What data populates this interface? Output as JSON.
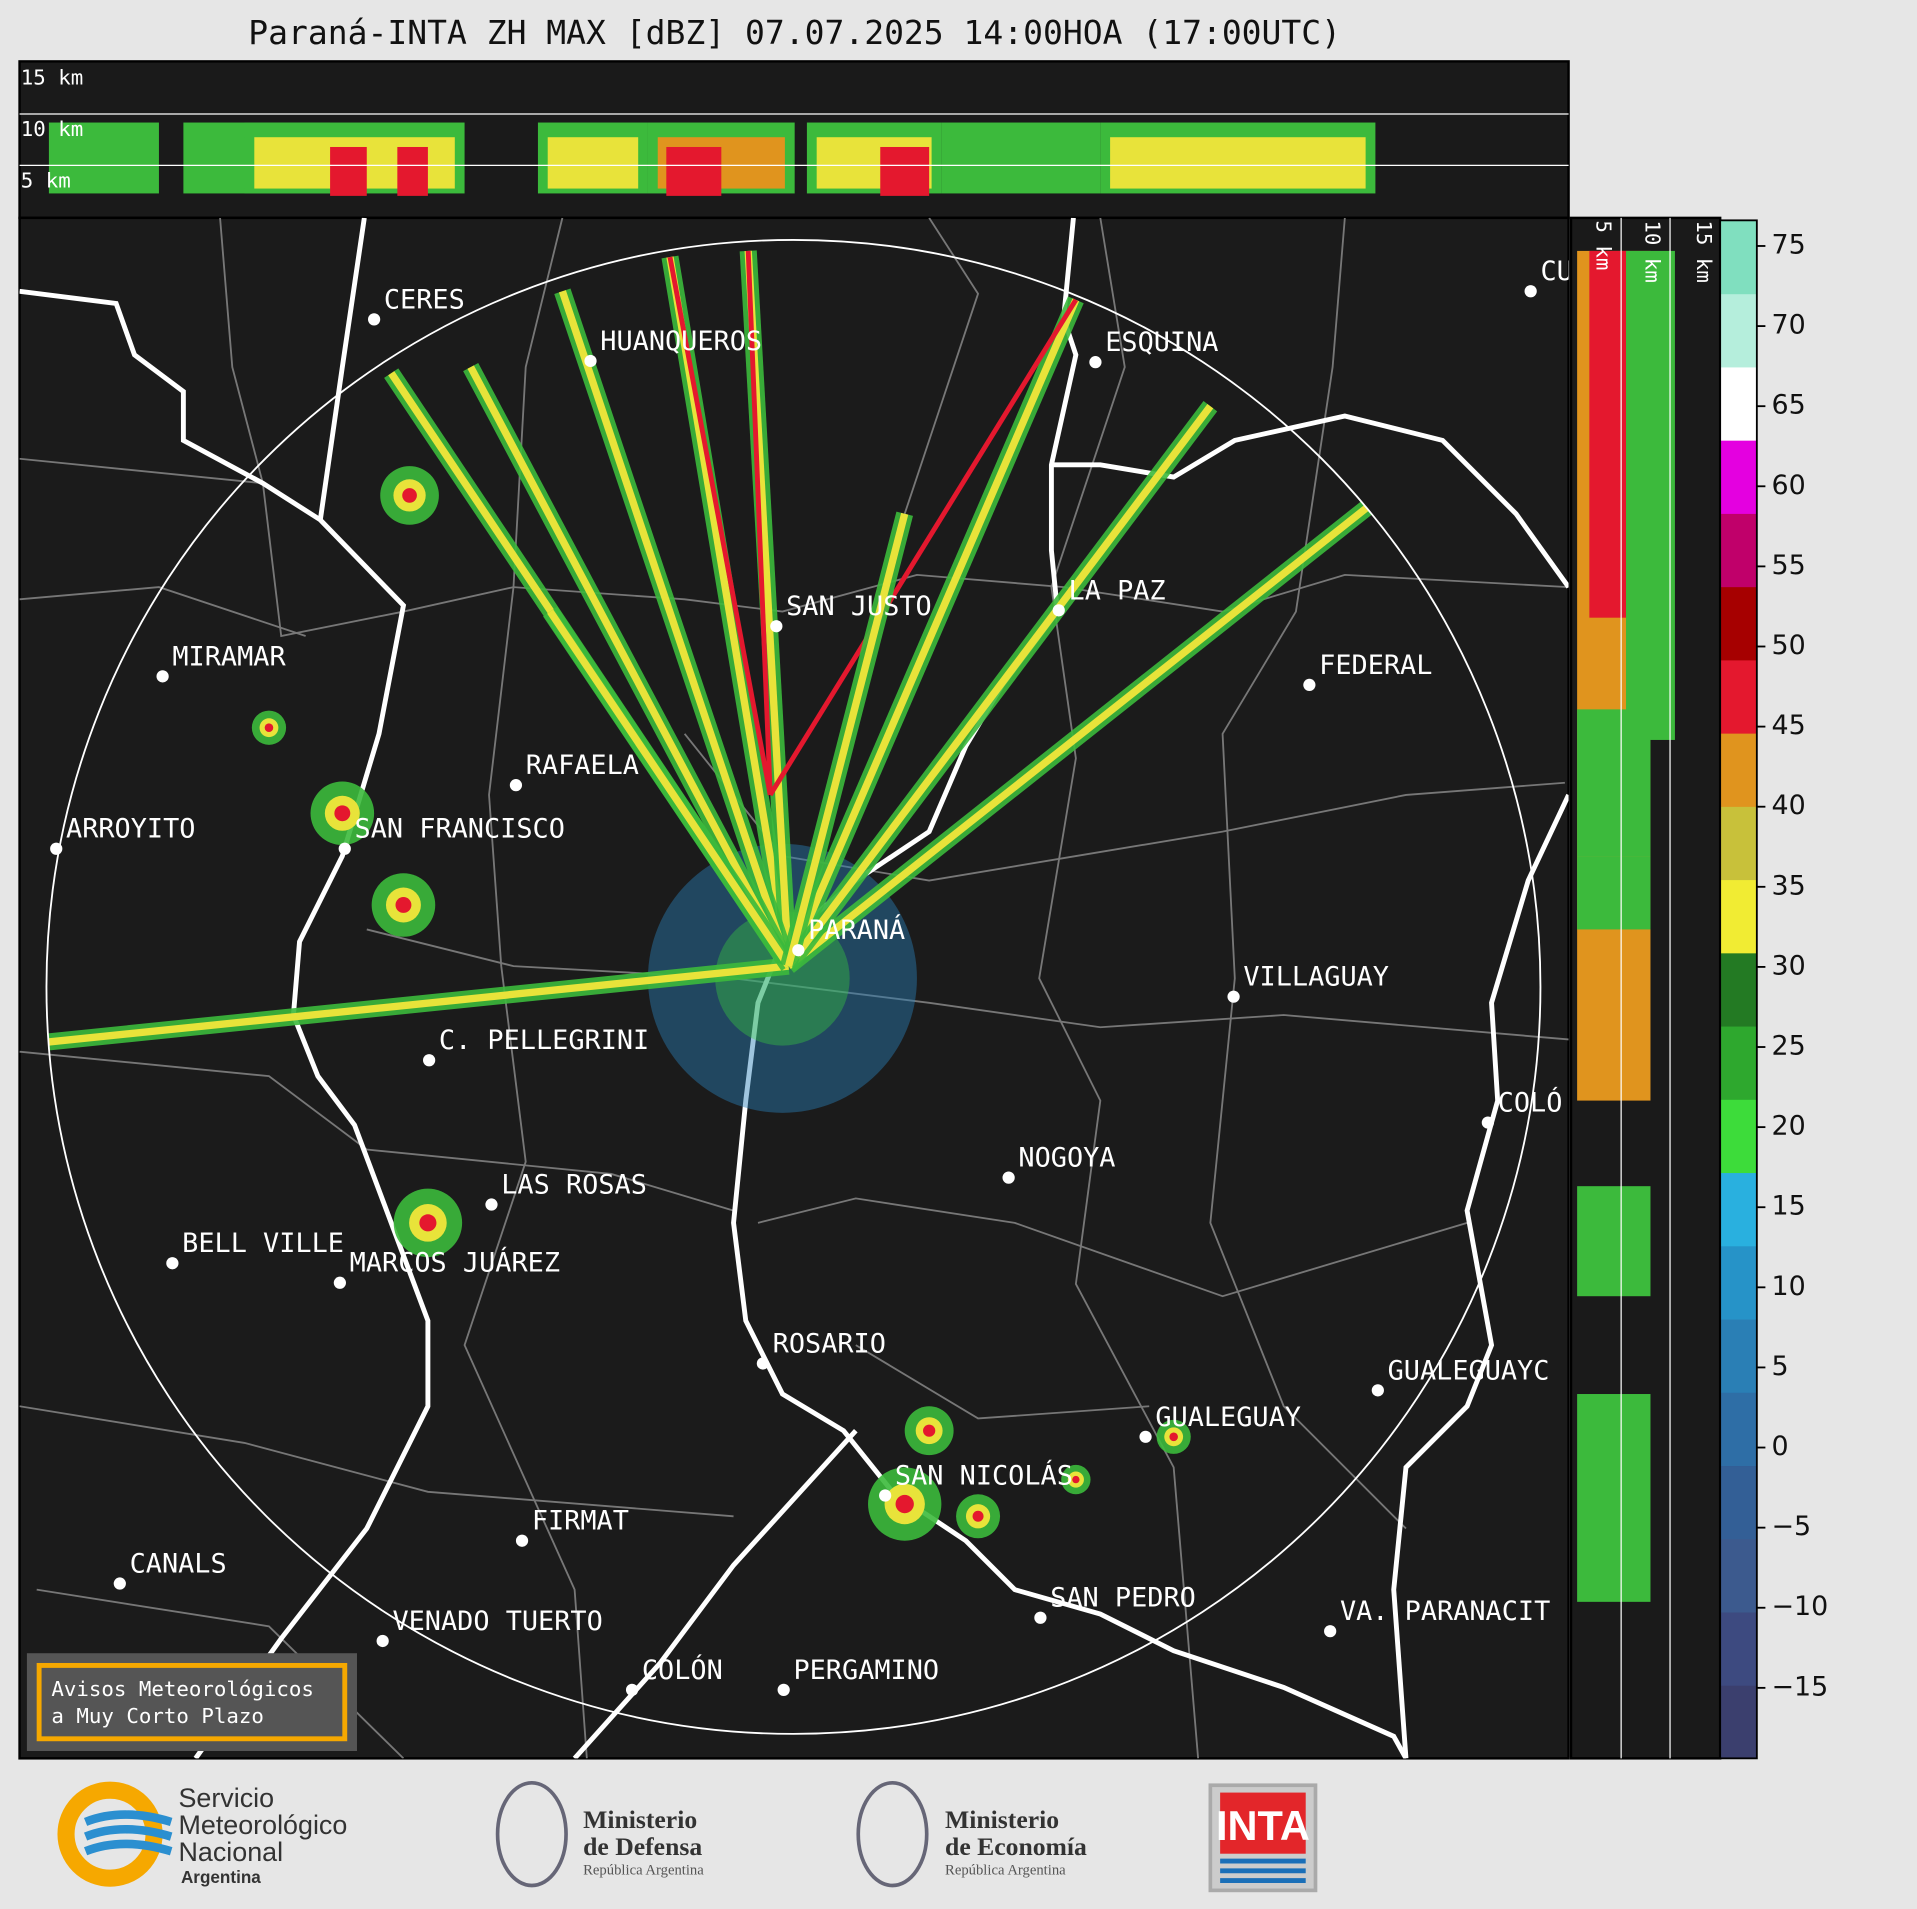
{
  "title": "Paraná-INTA ZH MAX [dBZ] 07.07.2025 14:00HOA (17:00UTC)",
  "top_panel": {
    "height_labels": [
      "15 km",
      "10 km",
      "5 km"
    ]
  },
  "side_panel": {
    "height_labels": [
      "5 km",
      "10 km",
      "15 km"
    ]
  },
  "map": {
    "cities": [
      "CERES",
      "HUANQUEROS",
      "ESQUINA",
      "CU",
      "SAN JUSTO",
      "LA PAZ",
      "MIRAMAR",
      "FEDERAL",
      "RAFAELA",
      "ARROYITO",
      "SAN FRANCISCO",
      "PARANÁ",
      "VILLAGUAY",
      "C. PELLEGRINI",
      "COLÓ",
      "NOGOYA",
      "LAS ROSAS",
      "BELL VILLE",
      "MARCOS JUÁREZ",
      "ROSARIO",
      "GUALEGUAYC",
      "GUALEGUAY",
      "SAN NICOLÁS",
      "FIRMAT",
      "CANALS",
      "SAN PEDRO",
      "VA. PARANACIT",
      "VENADO TUERTO",
      "COLÓN",
      "PERGAMINO"
    ]
  },
  "colorbar": {
    "lim": [
      -19.4,
      76.6
    ],
    "ticks": [
      {
        "value": -15,
        "label": "−15"
      },
      {
        "value": -10,
        "label": "−10"
      },
      {
        "value": -5,
        "label": "−5"
      },
      0,
      5,
      10,
      15,
      20,
      25,
      30,
      35,
      40,
      45,
      50,
      55,
      60,
      65,
      70,
      75
    ],
    "colors": [
      "#3b3f6e",
      "#3d4a80",
      "#3c5a8e",
      "#335f96",
      "#2e6ea6",
      "#2a7fb5",
      "#2693c8",
      "#29b0df",
      "#3ddc3a",
      "#2ea82e",
      "#237a23",
      "#f1ec33",
      "#c8c13a",
      "#e0941e",
      "#e4182e",
      "#a60000",
      "#c0006a",
      "#e400e0",
      "#ffffff",
      "#b5eedc",
      "#80dfbf"
    ]
  },
  "warning_box": {
    "lines": [
      "Avisos Meteorológicos",
      "a Muy Corto Plazo"
    ]
  },
  "logos": {
    "smn": [
      "Servicio",
      "Meteorológico",
      "Nacional",
      "Argentina"
    ],
    "defensa": [
      "Ministerio",
      "de Defensa",
      "República Argentina"
    ],
    "economia": [
      "Ministerio",
      "de Economía",
      "República Argentina"
    ],
    "inta": "INTA"
  }
}
